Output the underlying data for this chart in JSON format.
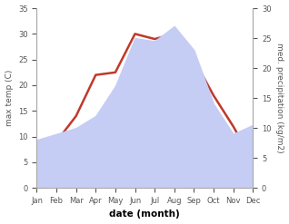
{
  "months": [
    "Jan",
    "Feb",
    "Mar",
    "Apr",
    "May",
    "Jun",
    "Jul",
    "Aug",
    "Sep",
    "Oct",
    "Nov",
    "Dec"
  ],
  "temp": [
    5.2,
    9.0,
    14.0,
    22.0,
    22.5,
    30.0,
    29.0,
    30.0,
    25.0,
    18.0,
    12.0,
    5.2
  ],
  "precip": [
    8.0,
    9.0,
    10.0,
    12.0,
    17.0,
    25.0,
    24.5,
    27.0,
    23.0,
    14.0,
    9.0,
    10.5
  ],
  "temp_color": "#c0392b",
  "precip_fill_color": "#c5cdf5",
  "ylim_temp": [
    0,
    35
  ],
  "ylim_precip": [
    0,
    30
  ],
  "yticks_temp": [
    0,
    5,
    10,
    15,
    20,
    25,
    30,
    35
  ],
  "yticks_precip": [
    0,
    5,
    10,
    15,
    20,
    25,
    30
  ],
  "ylabel_left": "max temp (C)",
  "ylabel_right": "med. precipitation (kg/m2)",
  "xlabel": "date (month)",
  "bg_color": "#ffffff",
  "spine_color": "#aaaaaa",
  "tick_color": "#555555",
  "label_fontsize": 6.5,
  "xlabel_fontsize": 7.5,
  "tick_fontsize": 6.0,
  "linewidth": 1.8
}
